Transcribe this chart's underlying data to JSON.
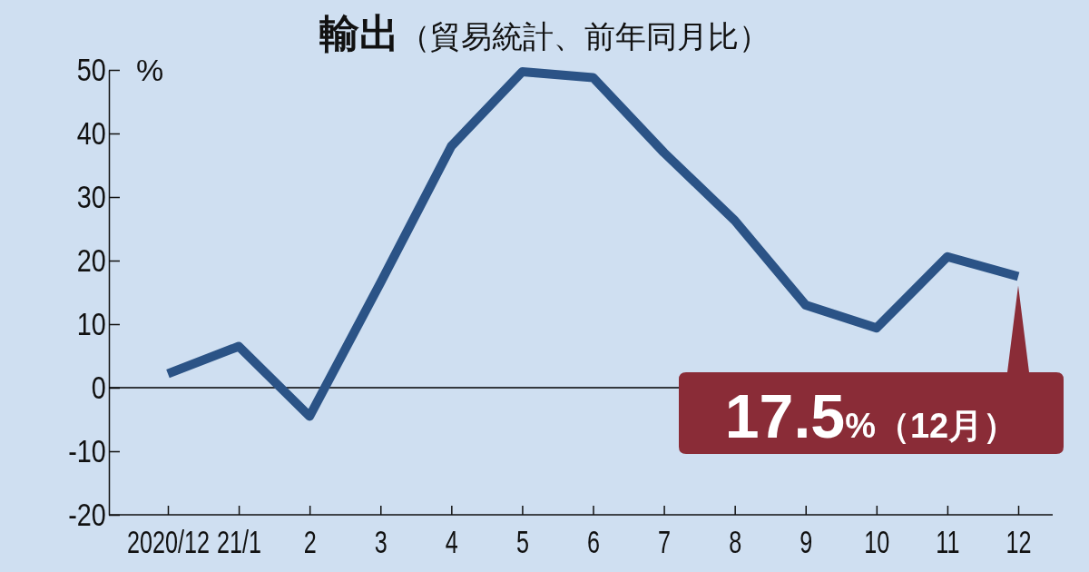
{
  "chart_data": {
    "type": "line",
    "title": "輸出",
    "subtitle": "（貿易統計、前年同月比）",
    "ylabel": "%",
    "categories": [
      "2020/12",
      "21/1",
      "2",
      "3",
      "4",
      "5",
      "6",
      "7",
      "8",
      "9",
      "10",
      "11",
      "12"
    ],
    "series": [
      {
        "color": "#2b5386",
        "values": [
          2.2,
          6.5,
          -4.5,
          16.5,
          38.0,
          49.7,
          48.8,
          37.0,
          26.3,
          13.0,
          9.4,
          20.6,
          17.5
        ]
      }
    ],
    "ylim": [
      -20,
      50
    ],
    "yticks": [
      -20,
      -10,
      0,
      10,
      20,
      30,
      40,
      50
    ],
    "ref_lines": [
      {
        "axis": "y",
        "value": 0,
        "color": "#000000"
      }
    ],
    "annotations": [
      {
        "text": "17.5%（12月）",
        "x": "12",
        "y": 17.5
      }
    ],
    "grid": false,
    "marker": "none",
    "line_style": "solid"
  }
}
